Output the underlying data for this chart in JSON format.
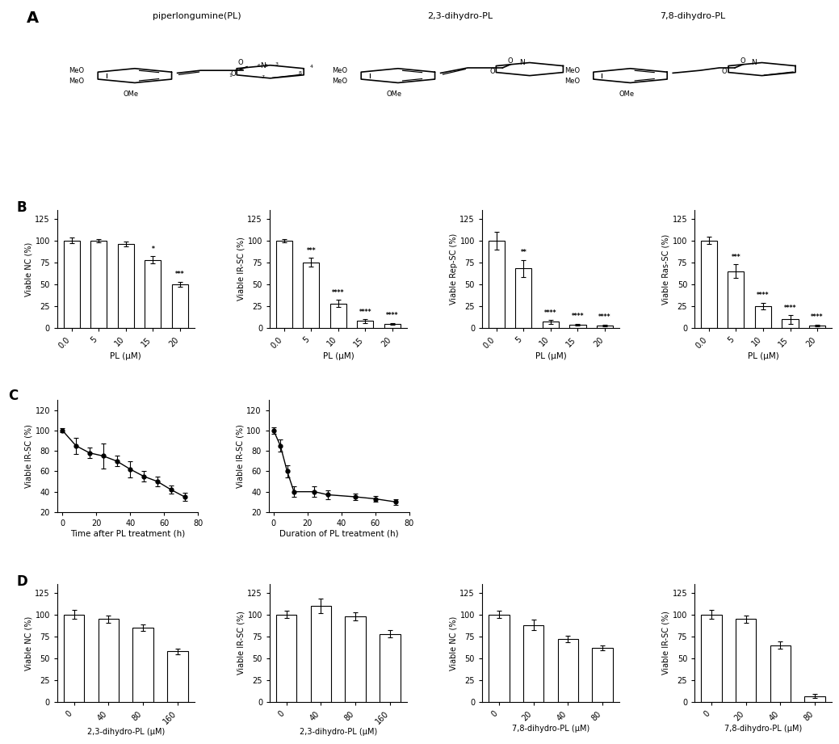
{
  "panel_B": {
    "NC": {
      "x_labels": [
        "0.0",
        "5",
        "10",
        "15",
        "20"
      ],
      "values": [
        100,
        100,
        96,
        78,
        50
      ],
      "errors": [
        3,
        2,
        3,
        4,
        3
      ],
      "sig": [
        "",
        "",
        "",
        "*",
        "***"
      ],
      "ylabel": "Viable NC (%)",
      "xlabel": "PL (μM)"
    },
    "IR_SC": {
      "x_labels": [
        "0.0",
        "5",
        "10",
        "15",
        "20"
      ],
      "values": [
        100,
        75,
        28,
        8,
        5
      ],
      "errors": [
        2,
        5,
        4,
        2,
        1
      ],
      "sig": [
        "",
        "***",
        "****",
        "****",
        "****"
      ],
      "ylabel": "Viable IR-SC (%)",
      "xlabel": "PL (μM)"
    },
    "Rep_SC": {
      "x_labels": [
        "0.0",
        "5",
        "10",
        "15",
        "20"
      ],
      "values": [
        100,
        68,
        7,
        4,
        3
      ],
      "errors": [
        10,
        10,
        2,
        1,
        1
      ],
      "sig": [
        "",
        "**",
        "****",
        "****",
        "****"
      ],
      "ylabel": "Viable Rep-SC (%)",
      "xlabel": "PL (μM)"
    },
    "Ras_SC": {
      "x_labels": [
        "0.0",
        "5",
        "10",
        "15",
        "20"
      ],
      "values": [
        100,
        65,
        25,
        10,
        3
      ],
      "errors": [
        4,
        8,
        4,
        5,
        1
      ],
      "sig": [
        "",
        "***",
        "****",
        "****",
        "****"
      ],
      "ylabel": "Viable Ras-SC (%)",
      "xlabel": "PL (μM)"
    }
  },
  "panel_C": {
    "time_course": {
      "x": [
        0,
        8,
        16,
        24,
        32,
        40,
        48,
        56,
        64,
        72
      ],
      "y": [
        100,
        85,
        78,
        75,
        70,
        62,
        55,
        50,
        42,
        35
      ],
      "yerr": [
        2,
        8,
        5,
        12,
        5,
        8,
        5,
        5,
        4,
        4
      ],
      "xlabel": "Time after PL treatment (h)",
      "ylabel": "Viable IR-SC (%)"
    },
    "duration": {
      "x": [
        0,
        4,
        8,
        12,
        24,
        32,
        48,
        60,
        72
      ],
      "y": [
        100,
        85,
        60,
        40,
        40,
        37,
        35,
        33,
        30
      ],
      "yerr": [
        3,
        6,
        6,
        5,
        5,
        4,
        3,
        3,
        3
      ],
      "xlabel": "Duration of PL treatment (h)",
      "ylabel": "Viable IR-SC (%)"
    }
  },
  "panel_D": {
    "dihydro23_NC": {
      "x_labels": [
        "0",
        "40",
        "80",
        "160"
      ],
      "values": [
        100,
        95,
        85,
        58
      ],
      "errors": [
        5,
        4,
        4,
        3
      ],
      "ylabel": "Viable NC (%)",
      "xlabel": "2,3-dihydro-PL (μM)"
    },
    "dihydro23_IRSC": {
      "x_labels": [
        "0",
        "40",
        "80",
        "160"
      ],
      "values": [
        100,
        110,
        98,
        78
      ],
      "errors": [
        4,
        8,
        5,
        4
      ],
      "ylabel": "Viable IR-SC (%)",
      "xlabel": "2,3-dihydro-PL (μM)"
    },
    "dihydro78_NC": {
      "x_labels": [
        "0",
        "20",
        "40",
        "80"
      ],
      "values": [
        100,
        88,
        72,
        62
      ],
      "errors": [
        4,
        6,
        4,
        3
      ],
      "ylabel": "Viable NC (%)",
      "xlabel": "7,8-dihydro-PL (μM)"
    },
    "dihydro78_IRSC": {
      "x_labels": [
        "0",
        "20",
        "40",
        "80"
      ],
      "values": [
        100,
        95,
        65,
        7
      ],
      "errors": [
        5,
        4,
        4,
        2
      ],
      "ylabel": "Viable IR-SC (%)",
      "xlabel": "7,8-dihydro-PL (μM)"
    }
  },
  "bar_color": "#ffffff",
  "bar_edgecolor": "#000000",
  "line_color": "#000000",
  "background_color": "#ffffff"
}
